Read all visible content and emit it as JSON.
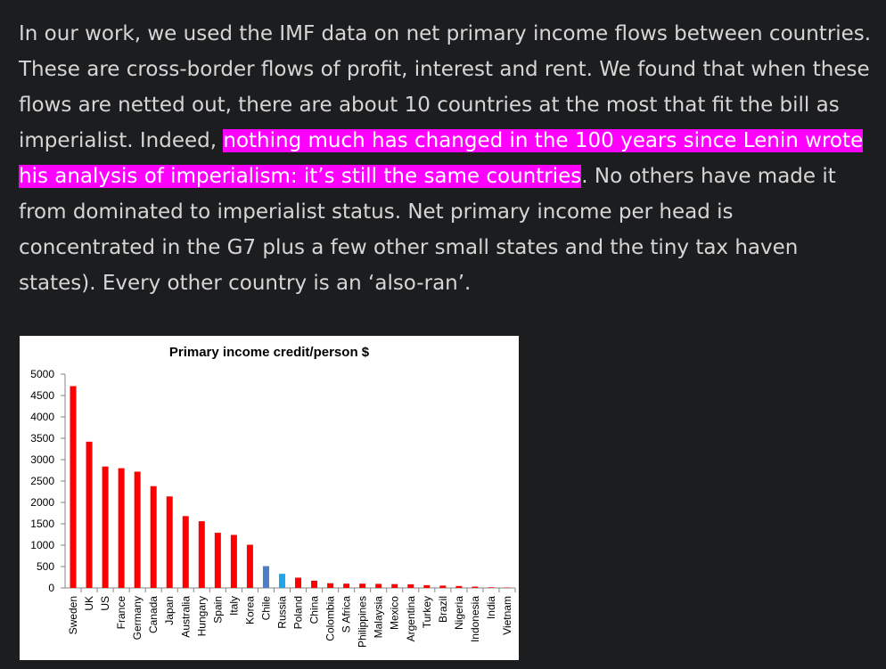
{
  "article": {
    "text_before": "In our work, we used the IMF data on net primary income flows between countries. These are cross-border flows of profit, interest and rent.  We found that when these flows are netted out, there are about 10 countries at the most that fit the bill as imperialist.  Indeed, ",
    "highlight": "nothing much has changed in the 100 years since Lenin wrote his analysis of imperialism: it’s still the same countries",
    "text_after": ".  No others have made it from dominated to imperialist status.  Net primary income per head is concentrated in the G7 plus a few other small states and the tiny tax haven states).  Every other country is an ‘also-ran’.",
    "highlight_color": "#ff00ff"
  },
  "chart_data": {
    "type": "bar",
    "title": "Primary income credit/person $",
    "xlabel": "",
    "ylabel": "",
    "ylim": [
      0,
      5000
    ],
    "yticks": [
      0,
      500,
      1000,
      1500,
      2000,
      2500,
      3000,
      3500,
      4000,
      4500,
      5000
    ],
    "grid": false,
    "categories": [
      "Sweden",
      "UK",
      "US",
      "France",
      "Germany",
      "Canada",
      "Japan",
      "Australia",
      "Hungary",
      "Spain",
      "Italy",
      "Korea",
      "Chile",
      "Russia",
      "Poland",
      "China",
      "Colombia",
      "S Africa",
      "Philippines",
      "Malaysia",
      "Mexico",
      "Argentina",
      "Turkey",
      "Brazil",
      "Nigeria",
      "Indonesia",
      "India",
      "Vietnam"
    ],
    "values": [
      4720,
      3420,
      2840,
      2800,
      2720,
      2380,
      2140,
      1680,
      1560,
      1290,
      1240,
      1010,
      510,
      330,
      240,
      170,
      110,
      100,
      100,
      95,
      90,
      85,
      65,
      55,
      45,
      30,
      15,
      10
    ],
    "colors": [
      "#ff0000",
      "#ff0000",
      "#ff0000",
      "#ff0000",
      "#ff0000",
      "#ff0000",
      "#ff0000",
      "#ff0000",
      "#ff0000",
      "#ff0000",
      "#ff0000",
      "#ff0000",
      "#4a7ec7",
      "#1fa6ea",
      "#ff0000",
      "#ff0000",
      "#ff0000",
      "#ff0000",
      "#ff0000",
      "#ff0000",
      "#ff0000",
      "#ff0000",
      "#ff0000",
      "#ff0000",
      "#ff0000",
      "#ff0000",
      "#ff0000",
      "#ff0000"
    ]
  }
}
